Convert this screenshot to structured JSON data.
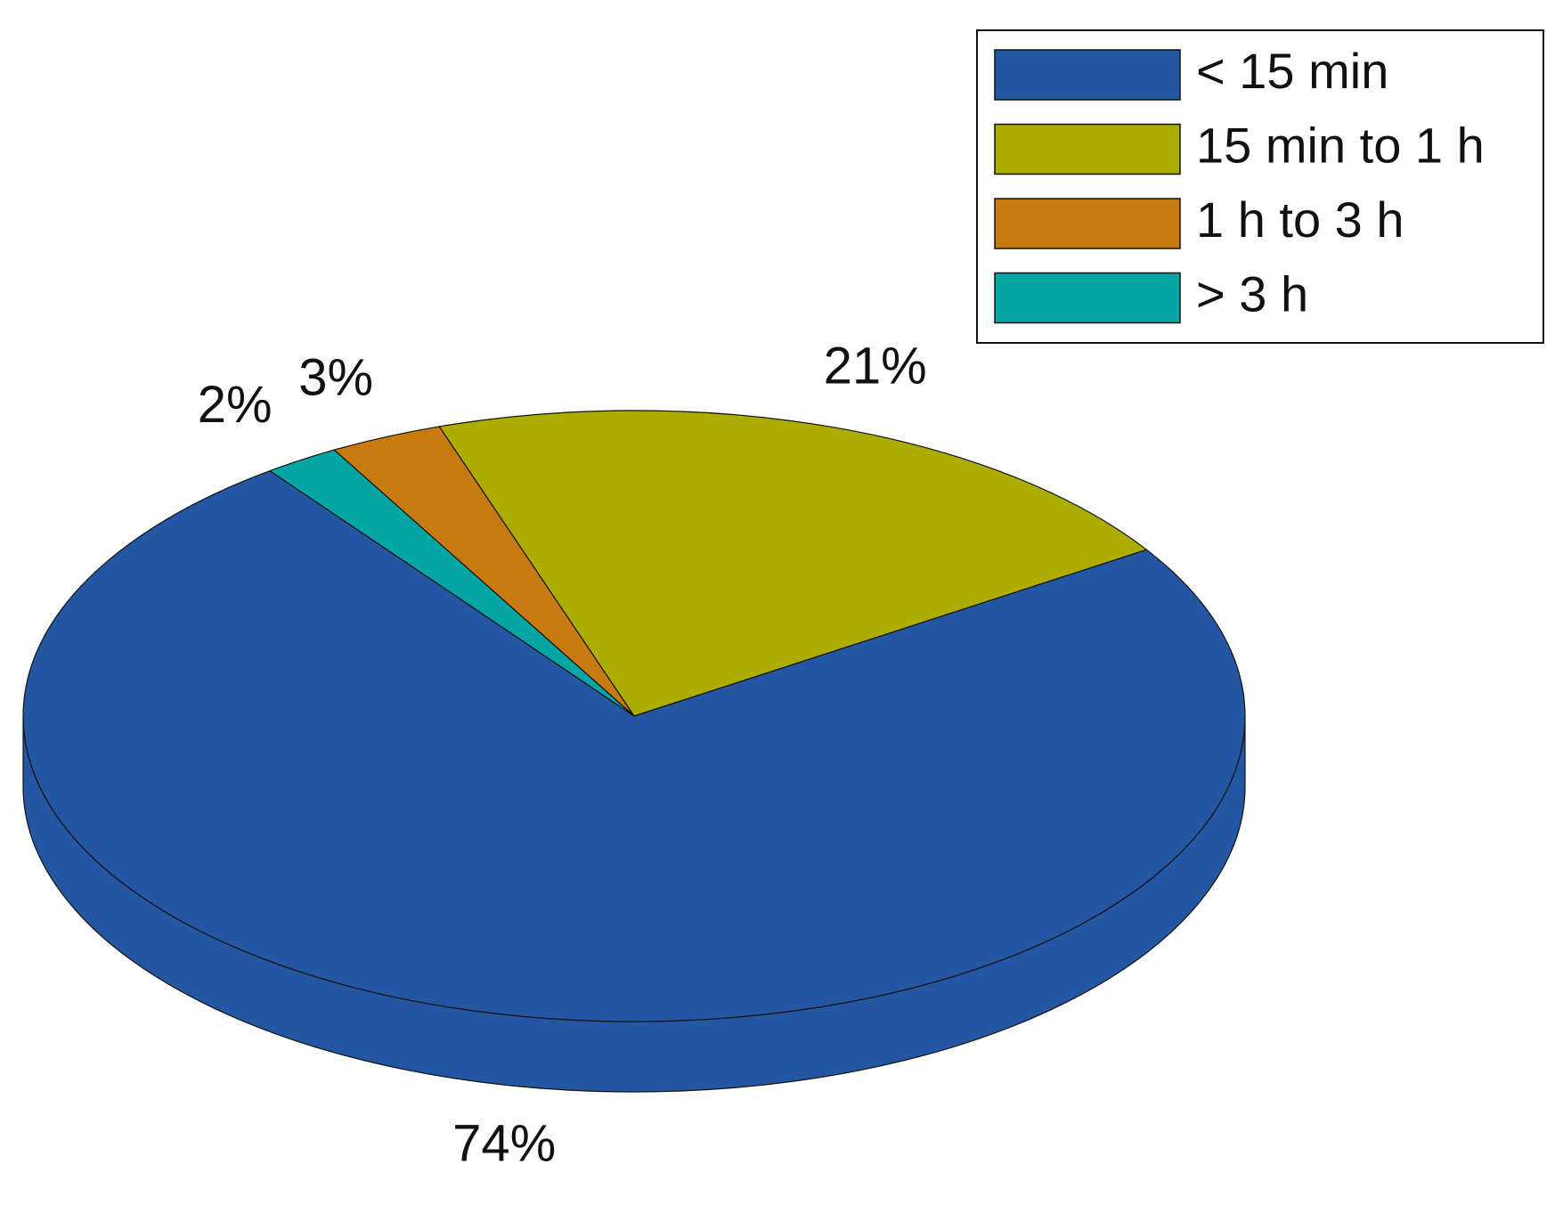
{
  "chart_data": {
    "type": "pie",
    "categories": [
      "< 15 min",
      "15 min to 1 h",
      "1 h to 3 h",
      "> 3 h"
    ],
    "values": [
      74,
      21,
      3,
      2
    ],
    "value_labels": [
      "74%",
      "21%",
      "3%",
      "2%"
    ],
    "colors": [
      "#2457a3",
      "#adad00",
      "#c87a10",
      "#05a5a5"
    ],
    "legend": "upper right"
  }
}
